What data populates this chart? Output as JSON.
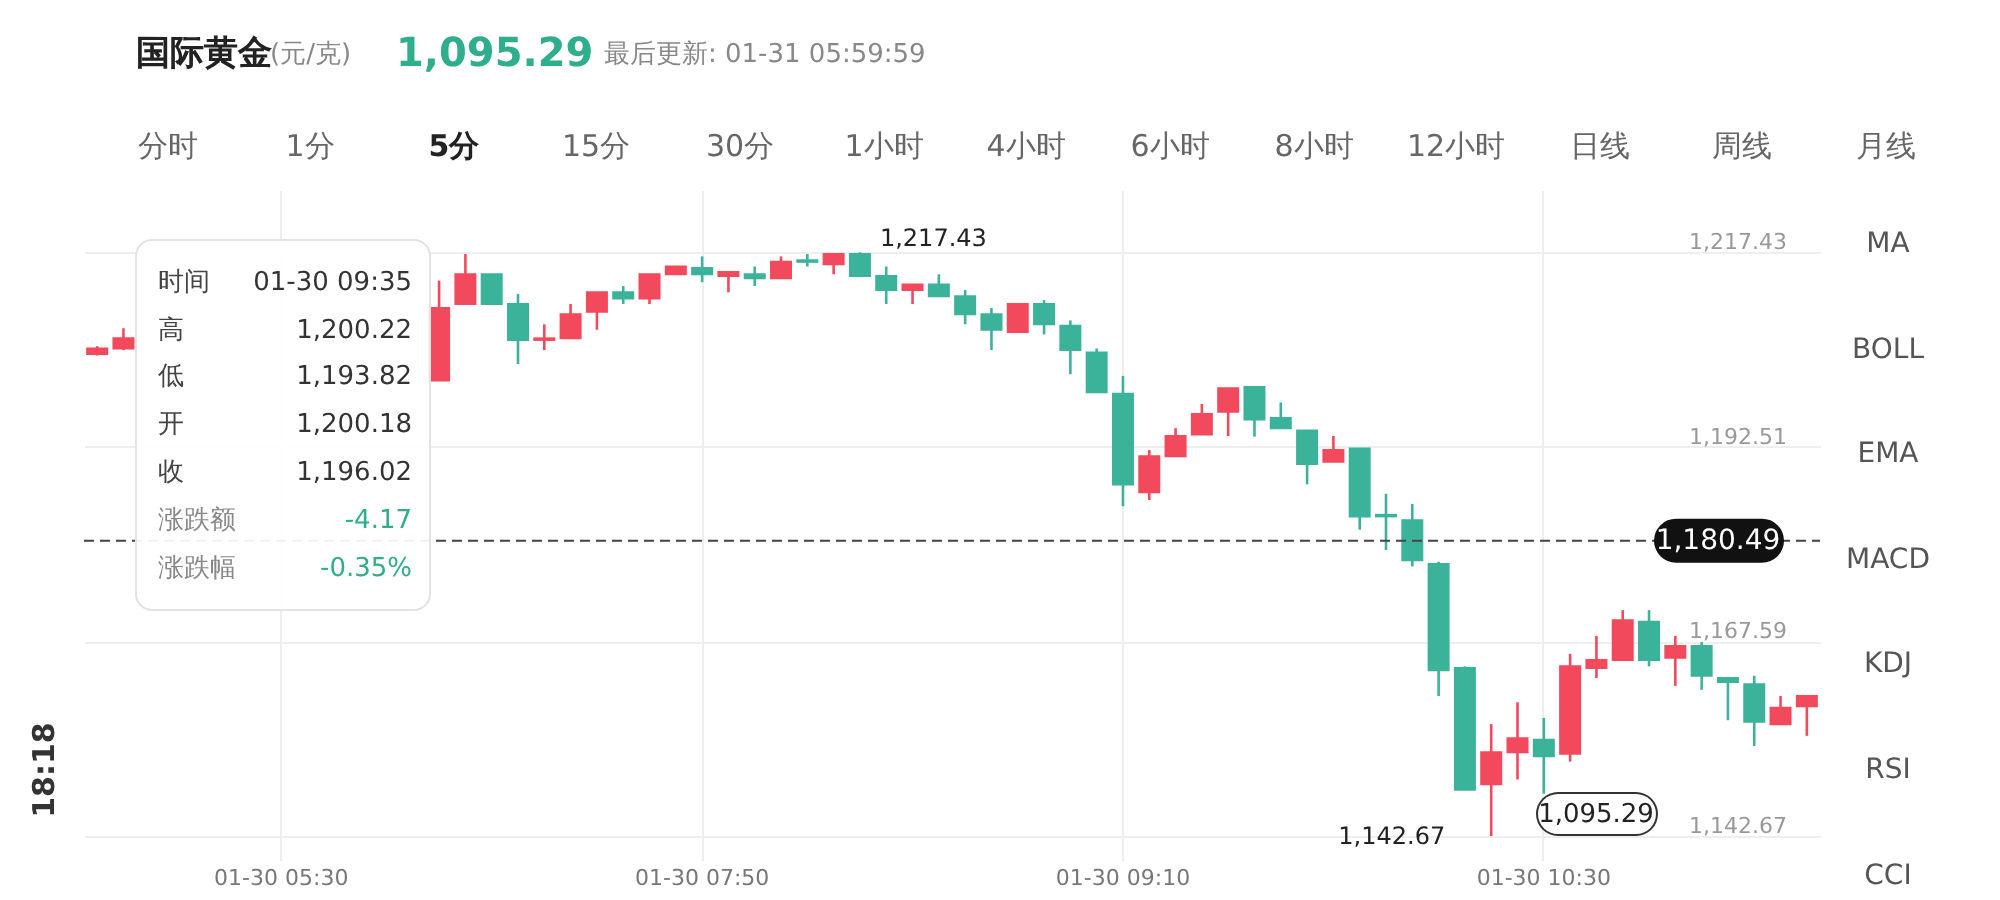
{
  "chart_data": {
    "type": "candlestick",
    "title": "国际黄金",
    "categories": [
      null,
      null,
      null,
      null,
      null,
      null,
      null,
      "01-30 05:30",
      null,
      null,
      null,
      null,
      null,
      null,
      null,
      null,
      null,
      null,
      null,
      null,
      null,
      null,
      null,
      "01-30 07:50",
      null,
      null,
      null,
      null,
      null,
      null,
      null,
      null,
      null,
      null,
      null,
      null,
      null,
      null,
      null,
      "01-30 09:10",
      null,
      null,
      null,
      null,
      null,
      null,
      null,
      null,
      null,
      null,
      null,
      null,
      null,
      null,
      null,
      "01-30 10:30",
      null,
      null,
      null,
      null,
      null,
      null,
      null,
      null,
      null,
      null
    ],
    "ohlc": [
      [
        1204.4,
        1205.4,
        1204.2,
        1205.1
      ],
      [
        1205.1,
        1207.7,
        1204.9,
        1206.4
      ],
      null,
      null,
      null,
      null,
      null,
      null,
      null,
      null,
      null,
      null,
      null,
      [
        1201.0,
        1213.8,
        1201.0,
        1210.3
      ],
      [
        1210.8,
        1217.2,
        1210.8,
        1214.6
      ],
      [
        1214.6,
        1214.6,
        1210.8,
        1210.8
      ],
      [
        1210.8,
        1212.1,
        1203.1,
        1206.2
      ],
      [
        1206.2,
        1208.2,
        1204.9,
        1206.4
      ],
      [
        1206.4,
        1210.8,
        1206.4,
        1209.5
      ],
      [
        1209.8,
        1212.3,
        1207.5,
        1212.3
      ],
      [
        1212.3,
        1213.1,
        1210.8,
        1211.5
      ],
      [
        1211.5,
        1214.6,
        1210.8,
        1214.6
      ],
      [
        1214.6,
        1215.6,
        1214.6,
        1215.6
      ],
      [
        1215.4,
        1216.9,
        1213.6,
        1214.6
      ],
      [
        1214.4,
        1214.9,
        1212.3,
        1214.9
      ],
      [
        1214.6,
        1215.6,
        1213.1,
        1214.1
      ],
      [
        1214.1,
        1216.9,
        1214.1,
        1216.2
      ],
      [
        1216.4,
        1217.2,
        1215.6,
        1216.2
      ],
      [
        1215.9,
        1217.2,
        1214.6,
        1217.2
      ],
      [
        1217.2,
        1217.43,
        1214.4,
        1214.4
      ],
      [
        1214.4,
        1215.6,
        1210.8,
        1212.6
      ],
      [
        1212.6,
        1213.3,
        1210.8,
        1213.3
      ],
      [
        1213.3,
        1214.6,
        1211.8,
        1211.8
      ],
      [
        1211.8,
        1212.6,
        1208.2,
        1209.5
      ],
      [
        1209.5,
        1210.3,
        1204.9,
        1207.5
      ],
      [
        1207.2,
        1210.8,
        1207.2,
        1210.8
      ],
      [
        1210.8,
        1211.3,
        1206.9,
        1208.2
      ],
      [
        1208.0,
        1208.7,
        1201.8,
        1204.9
      ],
      [
        1204.6,
        1205.1,
        1199.5,
        1199.5
      ],
      [
        1199.3,
        1201.6,
        1184.9,
        1187.7
      ],
      [
        1186.7,
        1192.1,
        1185.7,
        1191.3
      ],
      [
        1191.3,
        1194.9,
        1191.3,
        1193.9
      ],
      [
        1194.1,
        1198.0,
        1194.1,
        1196.7
      ],
      [
        1197.0,
        1200.0,
        1193.9,
        1200.0
      ],
      [
        1200.18,
        1200.22,
        1193.82,
        1196.02
      ],
      [
        1196.2,
        1198.2,
        1194.9,
        1194.9
      ],
      [
        1194.6,
        1194.6,
        1187.7,
        1190.3
      ],
      [
        1190.6,
        1193.9,
        1190.6,
        1192.1
      ],
      [
        1192.3,
        1192.3,
        1181.9,
        1183.6
      ],
      [
        1183.8,
        1186.5,
        1179.3,
        1183.6
      ],
      [
        1183.1,
        1185.2,
        1177.2,
        1178.0
      ],
      [
        1177.5,
        1177.8,
        1160.6,
        1163.9
      ],
      [
        1164.2,
        1164.4,
        1148.6,
        1148.6
      ],
      [
        1149.3,
        1157.0,
        1142.67,
        1153.4
      ],
      [
        1153.4,
        1159.8,
        1149.9,
        1155.2
      ],
      [
        1155.0,
        1157.8,
        1148.1,
        1152.9
      ],
      [
        1153.2,
        1166.0,
        1152.2,
        1164.4
      ],
      [
        1164.2,
        1168.3,
        1162.9,
        1165.2
      ],
      [
        1165.2,
        1171.6,
        1165.2,
        1170.3
      ],
      [
        1170.1,
        1171.6,
        1164.4,
        1165.2
      ],
      [
        1165.5,
        1168.3,
        1161.9,
        1167.0
      ],
      [
        1167.0,
        1167.5,
        1161.4,
        1163.2
      ],
      [
        1162.9,
        1162.9,
        1157.5,
        1162.4
      ],
      [
        1162.1,
        1163.2,
        1154.2,
        1157.3
      ],
      [
        1157.0,
        1160.6,
        1157.0,
        1159.1
      ],
      [
        1159.3,
        1160.6,
        1155.5,
        1160.6
      ]
    ],
    "colors": [
      "#f2495c",
      "#f2495c",
      null,
      null,
      null,
      null,
      null,
      null,
      null,
      null,
      null,
      null,
      null,
      "#f2495c",
      "#f2495c",
      "#3bb39a",
      "#3bb39a",
      "#f2495c",
      "#f2495c",
      "#f2495c",
      "#3bb39a",
      "#f2495c",
      "#f2495c",
      "#3bb39a",
      "#f2495c",
      "#3bb39a",
      "#f2495c",
      "#3bb39a",
      "#f2495c",
      "#3bb39a",
      "#3bb39a",
      "#f2495c",
      "#3bb39a",
      "#3bb39a",
      "#3bb39a",
      "#f2495c",
      "#3bb39a",
      "#3bb39a",
      "#3bb39a",
      "#3bb39a",
      "#f2495c",
      "#f2495c",
      "#f2495c",
      "#f2495c",
      "#3bb39a",
      "#3bb39a",
      "#3bb39a",
      "#f2495c",
      "#3bb39a",
      "#3bb39a",
      "#3bb39a",
      "#3bb39a",
      "#3bb39a",
      "#f2495c",
      "#f2495c",
      "#3bb39a",
      "#f2495c",
      "#f2495c",
      "#f2495c",
      "#3bb39a",
      "#f2495c",
      "#3bb39a",
      "#3bb39a",
      "#3bb39a",
      "#f2495c",
      "#f2495c"
    ],
    "ylim": [
      1139.6,
      1225.4
    ],
    "yticks": [
      {
        "value": 1217.43,
        "label": "1,217.43"
      },
      {
        "value": 1192.51,
        "label": "1,192.51"
      },
      {
        "value": 1167.59,
        "label": "1,167.59"
      },
      {
        "value": 1142.67,
        "label": "1,142.67"
      }
    ],
    "grid": true,
    "ref_lines": [
      {
        "axis": "y",
        "value": 1180.49,
        "label": "1,180.49",
        "color": "#444444",
        "line_style": "dashed"
      }
    ],
    "annotations": [
      "(元/克)",
      "1,095.29",
      "最后更新: 01-31 05:59:59",
      "分时",
      "1分",
      "5分",
      "15分",
      "30分",
      "1小时",
      "4小时",
      "6小时",
      "8小时",
      "12小时",
      "日线",
      "周线",
      "月线",
      "MA",
      "BOLL",
      "EMA",
      "MACD",
      "KDJ",
      "RSI",
      "CCI",
      "时间",
      "01-30 09:35",
      "高",
      "1,200.22",
      "低",
      "1,193.82",
      "开",
      "1,200.18",
      "收",
      "1,196.02",
      "涨跌额",
      "-4.17",
      "涨跌幅",
      "-0.35%",
      "1,217.43",
      "1,142.67",
      "1,095.29",
      "18:18"
    ]
  }
}
